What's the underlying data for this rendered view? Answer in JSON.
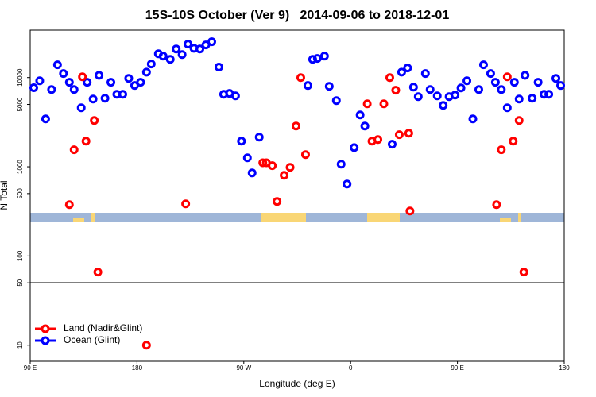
{
  "chart_data": {
    "type": "scatter",
    "title": "15S-10S October (Ver 9)   2014-09-06 to 2018-12-01",
    "x_label": "Longitude (deg E)",
    "y_label": "N Total",
    "xlim": [
      90,
      540
    ],
    "ylim": [
      6.6,
      34000
    ],
    "yscale": "log",
    "xticks": [
      {
        "value": 90,
        "label": "90 E"
      },
      180,
      {
        "value": 270,
        "label": "90 W"
      },
      {
        "value": 360,
        "label": "0"
      },
      {
        "value": 450,
        "label": "90 E"
      },
      {
        "value": 540,
        "label": "180"
      }
    ],
    "yticks": [
      10,
      50,
      100,
      500,
      1000,
      5000,
      10000
    ],
    "legend": "lower left",
    "series": [
      {
        "name": "Land (Nadir&Glint)",
        "color": "#ff0000",
        "x": [
          123,
          127,
          134,
          137,
          144,
          147,
          188,
          221,
          286,
          289,
          294,
          298,
          304,
          309,
          314,
          318,
          322,
          374,
          378,
          383,
          388,
          393,
          398,
          401,
          409,
          410,
          483,
          487,
          492,
          497,
          502,
          506
        ],
        "values": [
          376,
          1550,
          10200,
          1940,
          3300,
          66,
          10,
          384,
          1110,
          1110,
          1030,
          408,
          803,
          986,
          2860,
          10000,
          1370,
          5080,
          1940,
          2020,
          5080,
          10000,
          7210,
          2290,
          2380,
          319,
          376,
          1550,
          10200,
          1940,
          3300,
          66
        ]
      },
      {
        "name": "Ocean (Glint)",
        "color": "#0000ff",
        "x": [
          93,
          98,
          103,
          108,
          113,
          118,
          123,
          127,
          133,
          138,
          143,
          148,
          153,
          158,
          163,
          168,
          173,
          178,
          183,
          188,
          192,
          198,
          202,
          208,
          213,
          218,
          223,
          228,
          233,
          238,
          243,
          249,
          253,
          258,
          263,
          268,
          273,
          277,
          283,
          324,
          328,
          332,
          338,
          342,
          348,
          352,
          357,
          363,
          368,
          372,
          395,
          403,
          408,
          413,
          417,
          423,
          427,
          433,
          438,
          443,
          448,
          453,
          458,
          463,
          468,
          472,
          478,
          482,
          487,
          492,
          498,
          502,
          507,
          513,
          518,
          523,
          527,
          533,
          537
        ],
        "values": [
          7700,
          9200,
          3440,
          7350,
          13900,
          11100,
          8850,
          7350,
          4590,
          8850,
          5750,
          10600,
          5860,
          8850,
          6500,
          6500,
          9800,
          8150,
          8850,
          11500,
          14200,
          18500,
          17400,
          16000,
          20900,
          18100,
          23700,
          21300,
          20900,
          23200,
          25200,
          13100,
          6500,
          6640,
          6240,
          1940,
          1260,
          853,
          2150,
          8150,
          16000,
          16400,
          17400,
          7980,
          5520,
          1070,
          641,
          1640,
          3810,
          2860,
          1790,
          11500,
          12800,
          7820,
          6110,
          11100,
          7350,
          6240,
          4880,
          6110,
          6370,
          7660,
          9200,
          3440,
          7350,
          13900,
          11100,
          8850,
          7350,
          4590,
          8850,
          5750,
          10600,
          5860,
          8850,
          6500,
          6500,
          9800,
          8150
        ]
      }
    ]
  }
}
